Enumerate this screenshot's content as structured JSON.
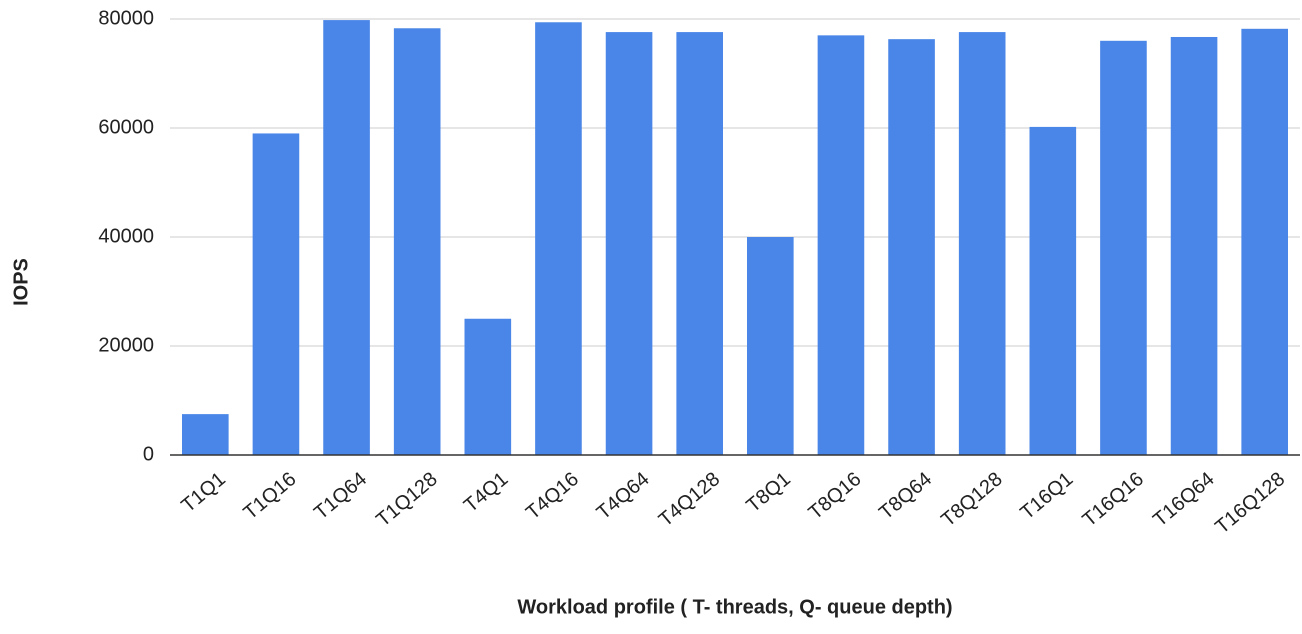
{
  "chart_data": {
    "type": "bar",
    "x_label": "Workload profile ( T- threads, Q- queue depth)",
    "y_label": "IOPS",
    "categories": [
      "T1Q1",
      "T1Q16",
      "T1Q64",
      "T1Q128",
      "T4Q1",
      "T4Q16",
      "T4Q64",
      "T4Q128",
      "T8Q1",
      "T8Q16",
      "T8Q64",
      "T8Q128",
      "T16Q1",
      "T16Q16",
      "T16Q64",
      "T16Q128"
    ],
    "values": [
      7500,
      59000,
      79800,
      78300,
      25000,
      79400,
      77600,
      77600,
      40000,
      77000,
      76300,
      77600,
      60200,
      76000,
      76700,
      78200
    ],
    "color": "#4a86e8",
    "ylim": [
      0,
      80000
    ],
    "yticks": [
      0,
      20000,
      40000,
      60000,
      80000
    ],
    "grid": true
  }
}
